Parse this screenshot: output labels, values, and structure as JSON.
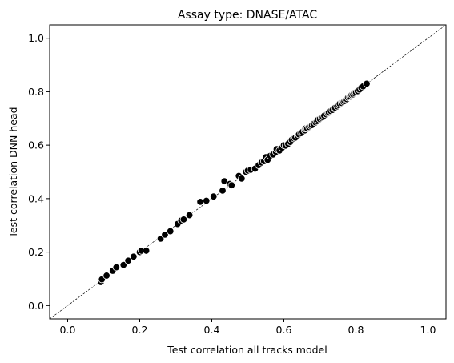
{
  "chart_data": {
    "type": "scatter",
    "title": "Assay type: DNASE/ATAC",
    "xlabel": "Test correlation all tracks model",
    "ylabel": "Test correlation DNN head",
    "xlim": [
      -0.05,
      1.05
    ],
    "ylim": [
      -0.05,
      1.05
    ],
    "xticks": [
      "0.0",
      "0.2",
      "0.4",
      "0.6",
      "0.8",
      "1.0"
    ],
    "yticks": [
      "0.0",
      "0.2",
      "0.4",
      "0.6",
      "0.8",
      "1.0"
    ],
    "grid": false,
    "diagonal": {
      "from": [
        -0.05,
        -0.05
      ],
      "to": [
        1.05,
        1.05
      ],
      "style": "dashed",
      "color": "#000000"
    },
    "marker_color": "#000000",
    "marker_edge_color": "#ffffff",
    "points": [
      [
        0.092,
        0.088
      ],
      [
        0.095,
        0.098
      ],
      [
        0.108,
        0.112
      ],
      [
        0.125,
        0.13
      ],
      [
        0.135,
        0.143
      ],
      [
        0.155,
        0.152
      ],
      [
        0.168,
        0.168
      ],
      [
        0.183,
        0.183
      ],
      [
        0.2,
        0.2
      ],
      [
        0.205,
        0.205
      ],
      [
        0.218,
        0.205
      ],
      [
        0.258,
        0.25
      ],
      [
        0.27,
        0.265
      ],
      [
        0.285,
        0.278
      ],
      [
        0.305,
        0.305
      ],
      [
        0.315,
        0.318
      ],
      [
        0.322,
        0.322
      ],
      [
        0.338,
        0.338
      ],
      [
        0.368,
        0.388
      ],
      [
        0.385,
        0.392
      ],
      [
        0.405,
        0.408
      ],
      [
        0.435,
        0.465
      ],
      [
        0.43,
        0.43
      ],
      [
        0.45,
        0.455
      ],
      [
        0.455,
        0.45
      ],
      [
        0.475,
        0.485
      ],
      [
        0.483,
        0.475
      ],
      [
        0.495,
        0.5
      ],
      [
        0.5,
        0.505
      ],
      [
        0.508,
        0.508
      ],
      [
        0.52,
        0.512
      ],
      [
        0.53,
        0.525
      ],
      [
        0.538,
        0.535
      ],
      [
        0.545,
        0.54
      ],
      [
        0.55,
        0.555
      ],
      [
        0.555,
        0.545
      ],
      [
        0.562,
        0.56
      ],
      [
        0.57,
        0.565
      ],
      [
        0.578,
        0.575
      ],
      [
        0.58,
        0.585
      ],
      [
        0.588,
        0.58
      ],
      [
        0.595,
        0.59
      ],
      [
        0.6,
        0.6
      ],
      [
        0.605,
        0.598
      ],
      [
        0.612,
        0.605
      ],
      [
        0.618,
        0.612
      ],
      [
        0.622,
        0.62
      ],
      [
        0.628,
        0.625
      ],
      [
        0.632,
        0.628
      ],
      [
        0.638,
        0.635
      ],
      [
        0.642,
        0.64
      ],
      [
        0.648,
        0.645
      ],
      [
        0.652,
        0.65
      ],
      [
        0.658,
        0.655
      ],
      [
        0.66,
        0.662
      ],
      [
        0.665,
        0.662
      ],
      [
        0.67,
        0.668
      ],
      [
        0.675,
        0.672
      ],
      [
        0.678,
        0.675
      ],
      [
        0.682,
        0.68
      ],
      [
        0.688,
        0.685
      ],
      [
        0.692,
        0.69
      ],
      [
        0.695,
        0.695
      ],
      [
        0.7,
        0.698
      ],
      [
        0.705,
        0.702
      ],
      [
        0.708,
        0.705
      ],
      [
        0.712,
        0.71
      ],
      [
        0.718,
        0.715
      ],
      [
        0.722,
        0.72
      ],
      [
        0.725,
        0.722
      ],
      [
        0.73,
        0.728
      ],
      [
        0.735,
        0.732
      ],
      [
        0.74,
        0.738
      ],
      [
        0.742,
        0.74
      ],
      [
        0.748,
        0.745
      ],
      [
        0.752,
        0.75
      ],
      [
        0.755,
        0.755
      ],
      [
        0.76,
        0.758
      ],
      [
        0.765,
        0.762
      ],
      [
        0.768,
        0.765
      ],
      [
        0.772,
        0.77
      ],
      [
        0.775,
        0.772
      ],
      [
        0.778,
        0.778
      ],
      [
        0.782,
        0.78
      ],
      [
        0.785,
        0.782
      ],
      [
        0.788,
        0.788
      ],
      [
        0.792,
        0.79
      ],
      [
        0.795,
        0.795
      ],
      [
        0.8,
        0.798
      ],
      [
        0.805,
        0.802
      ],
      [
        0.81,
        0.808
      ],
      [
        0.815,
        0.815
      ],
      [
        0.82,
        0.82
      ],
      [
        0.83,
        0.83
      ]
    ]
  }
}
